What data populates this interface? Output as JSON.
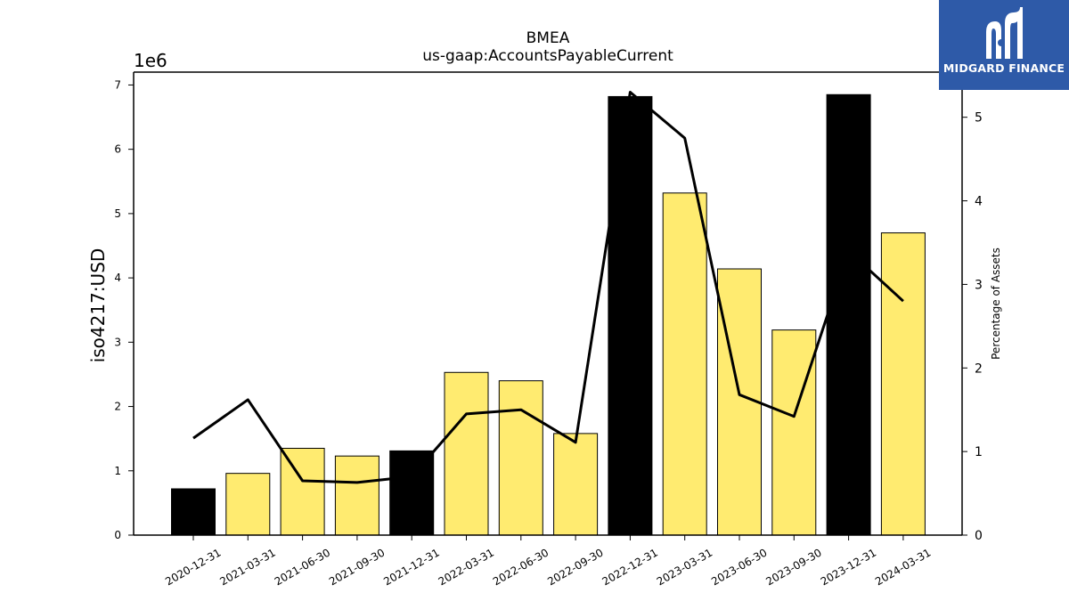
{
  "chart_data": {
    "type": "bar",
    "title": "BMEA",
    "subtitle": "us-gaap:AccountsPayableCurrent",
    "ylabel": "iso4217:USD",
    "y_offset_label": "1e6",
    "y2label": "Percentage of Assets",
    "ylim": [
      0,
      7200000
    ],
    "y2lim": [
      0,
      5.54
    ],
    "yticks": [
      "0",
      "1",
      "2",
      "3",
      "4",
      "5",
      "6",
      "7"
    ],
    "y2ticks": [
      "0",
      "1",
      "2",
      "3",
      "4",
      "5"
    ],
    "categories": [
      "2020-12-31",
      "2021-03-31",
      "2021-06-30",
      "2021-09-30",
      "2021-12-31",
      "2022-03-31",
      "2022-06-30",
      "2022-09-30",
      "2022-12-31",
      "2023-03-31",
      "2023-06-30",
      "2023-09-30",
      "2023-12-31",
      "2024-03-31"
    ],
    "values": [
      720000,
      960000,
      1350000,
      1230000,
      1310000,
      2530000,
      2400000,
      1580000,
      6820000,
      5320000,
      4140000,
      3190000,
      6850000,
      4700000
    ],
    "annual": [
      true,
      false,
      false,
      false,
      true,
      false,
      false,
      false,
      true,
      false,
      false,
      false,
      true,
      false
    ],
    "line_series": {
      "axis": "right",
      "values": [
        1.16,
        1.62,
        0.65,
        0.63,
        0.7,
        1.45,
        1.5,
        1.11,
        5.3,
        4.75,
        1.68,
        1.42,
        3.4,
        2.8
      ]
    },
    "colors": {
      "annual_bar": "#000000",
      "quarter_bar": "#ffeb70",
      "line": "#000000"
    },
    "grid": false
  },
  "brand": {
    "name": "MIDGARD FINANCE",
    "logo_color": "#2e5aa8"
  }
}
